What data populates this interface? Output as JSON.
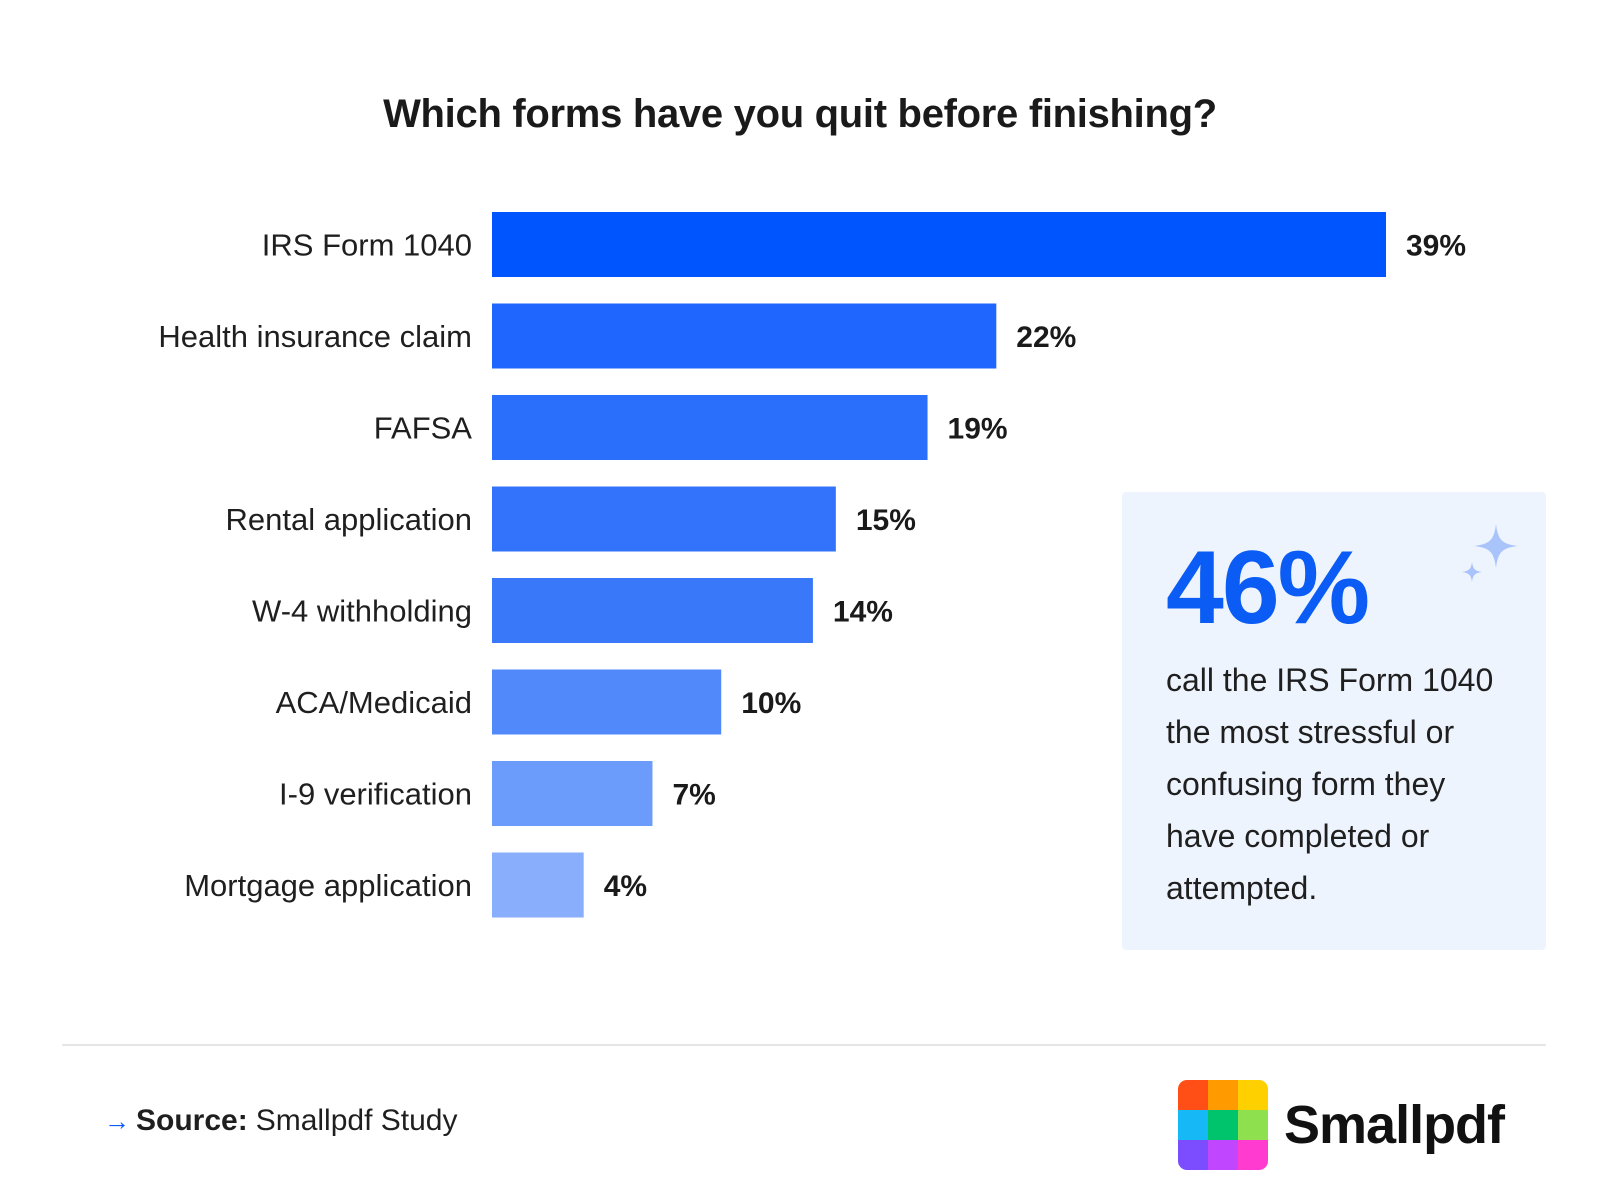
{
  "chart_data": {
    "type": "bar",
    "orientation": "horizontal",
    "title": "Which forms have you quit before finishing?",
    "categories": [
      "IRS Form 1040",
      "Health insurance claim",
      "FAFSA",
      "Rental application",
      "W-4 withholding",
      "ACA/Medicaid",
      "I-9 verification",
      "Mortgage application"
    ],
    "values": [
      39,
      22,
      19,
      15,
      14,
      10,
      7,
      4
    ],
    "value_labels": [
      "39%",
      "22%",
      "19%",
      "15%",
      "14%",
      "10%",
      "7%",
      "4%"
    ],
    "bar_colors": [
      "#0055ff",
      "#1f66ff",
      "#2a6ffc",
      "#3373fb",
      "#3a78fa",
      "#5289fa",
      "#6b9bfb",
      "#88aefc"
    ],
    "xlim": [
      0,
      39
    ],
    "grid": false,
    "legend": "none"
  },
  "callout": {
    "stat": "46%",
    "text": "call the IRS Form 1040 the most stressful or confusing form they have completed or attempted.",
    "sparkle_icon": "sparkle-icon"
  },
  "footer": {
    "source_arrow": "→",
    "source_label": "Source:",
    "source_value": "Smallpdf Study"
  },
  "logo": {
    "text": "Smallpdf",
    "colors": [
      "#ff4f17",
      "#ff9a00",
      "#ffd000",
      "#16b8f5",
      "#00c46b",
      "#8ee04f",
      "#7b4dff",
      "#c046ff",
      "#ff3ccf"
    ]
  }
}
